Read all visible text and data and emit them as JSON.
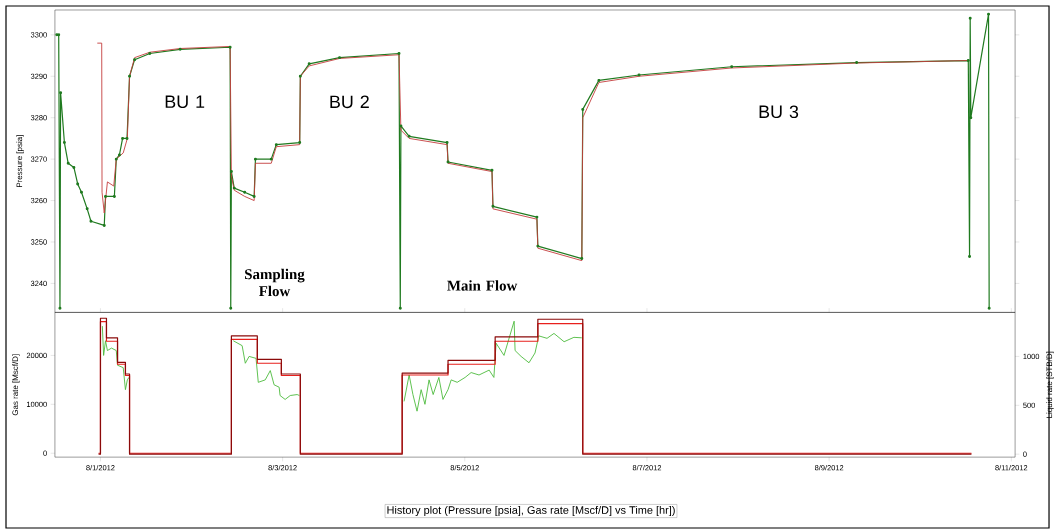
{
  "chart_data": [
    {
      "type": "line",
      "ylabel": "Pressure [psia]",
      "xlim": [
        "2012-07-31T12:00",
        "2012-08-11T01:00"
      ],
      "ylim": [
        3233,
        3306
      ],
      "yticks": [
        3240,
        3250,
        3260,
        3270,
        3280,
        3290,
        3300
      ],
      "tick_labels": "y",
      "series": [
        {
          "color": "#1f7a1f",
          "marker": "circle",
          "x": [
            "2012-07-31T12:30",
            "2012-07-31T13:00",
            "2012-07-31T13:20",
            "2012-07-31T13:30",
            "2012-07-31T14:30",
            "2012-07-31T15:30",
            "2012-07-31T17:00",
            "2012-07-31T18:00",
            "2012-07-31T19:00",
            "2012-07-31T20:30",
            "2012-07-31T21:30",
            "2012-08-01T01:00",
            "2012-08-01T01:20",
            "2012-08-01T03:40",
            "2012-08-01T04:10",
            "2012-08-01T05:00",
            "2012-08-01T05:50",
            "2012-08-01T07:00",
            "2012-08-01T07:40",
            "2012-08-01T09:00",
            "2012-08-01T13:00",
            "2012-08-01T21:00",
            "2012-08-02T10:10",
            "2012-08-02T10:20",
            "2012-08-02T10:30",
            "2012-08-02T11:15",
            "2012-08-02T14:00",
            "2012-08-02T16:30",
            "2012-08-02T16:50",
            "2012-08-02T21:00",
            "2012-08-02T22:20",
            "2012-08-03T04:30",
            "2012-08-03T04:40",
            "2012-08-03T07:00",
            "2012-08-03T15:00",
            "2012-08-04T06:40",
            "2012-08-04T07:00",
            "2012-08-04T07:10",
            "2012-08-04T09:20",
            "2012-08-04T19:20",
            "2012-08-04T19:35",
            "2012-08-05T07:10",
            "2012-08-05T07:25",
            "2012-08-05T19:00",
            "2012-08-05T19:15",
            "2012-08-06T06:50",
            "2012-08-06T07:05",
            "2012-08-06T11:20",
            "2012-08-06T21:55",
            "2012-08-07T22:20",
            "2012-08-09T07:15",
            "2012-08-10T12:40",
            "2012-08-10T13:00",
            "2012-08-10T13:10",
            "2012-08-10T13:20",
            "2012-08-10T18:00",
            "2012-08-10T18:10"
          ],
          "values": [
            3300,
            3300,
            3234,
            3286,
            3274,
            3269,
            3268,
            3264,
            3262,
            3258,
            3255,
            3254,
            3261,
            3261,
            3270,
            3271,
            3275,
            3275,
            3290,
            3294,
            3295.5,
            3296.5,
            3297,
            3234,
            3267,
            3263,
            3262,
            3261,
            3270,
            3270,
            3273.5,
            3274,
            3290,
            3293,
            3294.5,
            3295.5,
            3234,
            3278,
            3275.5,
            3274,
            3269.3,
            3267.3,
            3258.6,
            3256,
            3249,
            3246,
            3282,
            3289,
            3290.3,
            3292.3,
            3293.3,
            3293.8,
            3246.5,
            3304,
            3280,
            3305,
            3234
          ]
        },
        {
          "color": "#c43c3c",
          "x": [
            "2012-07-31T23:10",
            "2012-08-01T00:20",
            "2012-08-01T00:25",
            "2012-08-01T01:00",
            "2012-08-01T01:50",
            "2012-08-01T03:30",
            "2012-08-01T04:10",
            "2012-08-01T06:00",
            "2012-08-01T07:05",
            "2012-08-01T07:40",
            "2012-08-01T09:00",
            "2012-08-01T13:00",
            "2012-08-01T21:00",
            "2012-08-02T10:10",
            "2012-08-02T10:30",
            "2012-08-02T11:15",
            "2012-08-02T14:00",
            "2012-08-02T16:30",
            "2012-08-02T16:50",
            "2012-08-02T21:00",
            "2012-08-02T22:20",
            "2012-08-03T04:30",
            "2012-08-03T04:40",
            "2012-08-03T07:00",
            "2012-08-03T15:00",
            "2012-08-04T06:40",
            "2012-08-04T07:10",
            "2012-08-04T09:20",
            "2012-08-04T19:20",
            "2012-08-04T19:35",
            "2012-08-05T07:10",
            "2012-08-05T07:25",
            "2012-08-05T19:00",
            "2012-08-05T19:15",
            "2012-08-06T06:50",
            "2012-08-06T07:05",
            "2012-08-06T11:20",
            "2012-08-06T21:55",
            "2012-08-07T22:20",
            "2012-08-09T07:15",
            "2012-08-10T12:40"
          ],
          "values": [
            3298,
            3298,
            3262,
            3257,
            3264.5,
            3263.5,
            3270,
            3271.5,
            3275,
            3290,
            3294.5,
            3295.8,
            3296.7,
            3297.2,
            3266,
            3262.5,
            3261,
            3260,
            3269,
            3269,
            3273,
            3273.5,
            3290,
            3292.5,
            3294.3,
            3295.2,
            3277,
            3275,
            3273.5,
            3269,
            3267,
            3258,
            3255.5,
            3248.5,
            3245.5,
            3280,
            3288.5,
            3290,
            3292,
            3293.2,
            3293.8
          ]
        }
      ],
      "annotations": [
        "BU 1",
        "BU 2",
        "BU 3",
        "Sampling Flow",
        "Main Flow"
      ]
    },
    {
      "type": "line",
      "ylabel": "Gas rate [Mscf/D]",
      "y2label": "Liquid rate [STB/D]",
      "xlim": [
        "2012-07-31T12:00",
        "2012-08-11T01:00"
      ],
      "ylim": [
        -800,
        28800
      ],
      "yticks": [
        0,
        10000,
        20000
      ],
      "y2lim": [
        -30,
        1450
      ],
      "y2ticks": [
        0,
        500,
        1000
      ],
      "xticks": [
        {
          "value": "2012-08-01",
          "label": "8/1/2012"
        },
        {
          "value": "2012-08-03",
          "label": "8/3/2012"
        },
        {
          "value": "2012-08-05",
          "label": "8/5/2012"
        },
        {
          "value": "2012-08-07",
          "label": "8/7/2012"
        },
        {
          "value": "2012-08-09",
          "label": "8/9/2012"
        },
        {
          "value": "2012-08-11",
          "label": "8/11/2012"
        }
      ],
      "series": [
        {
          "type": "line",
          "color": "#4cbb3c",
          "x": [
            "2012-08-01T00:30",
            "2012-08-01T00:50",
            "2012-08-01T01:20",
            "2012-08-01T01:50",
            "2012-08-01T02:55",
            "2012-08-01T04:10",
            "2012-08-01T04:30",
            "2012-08-01T06:00",
            "2012-08-01T06:35",
            "2012-08-01T07:05",
            "2012-08-01T07:30",
            "2012-08-02T00:00",
            "2012-08-02T11:00",
            "2012-08-02T13:20",
            "2012-08-02T14:10",
            "2012-08-02T15:10",
            "2012-08-02T17:00",
            "2012-08-02T17:35",
            "2012-08-02T19:25",
            "2012-08-02T20:45",
            "2012-08-02T21:45",
            "2012-08-02T23:05",
            "2012-08-02T23:20",
            "2012-08-03T00:40",
            "2012-08-03T02:00",
            "2012-08-03T03:50",
            "2012-08-03T04:25",
            "2012-08-04T00:00",
            "2012-08-04T08:00",
            "2012-08-04T09:20",
            "2012-08-04T10:20",
            "2012-08-04T11:25",
            "2012-08-04T12:30",
            "2012-08-04T13:30",
            "2012-08-04T14:35",
            "2012-08-04T15:40",
            "2012-08-04T17:10",
            "2012-08-04T18:15",
            "2012-08-04T19:35",
            "2012-08-04T20:25",
            "2012-08-04T22:00",
            "2012-08-05T00:05",
            "2012-08-05T01:40",
            "2012-08-05T03:45",
            "2012-08-05T06:25",
            "2012-08-05T07:40",
            "2012-08-05T08:15",
            "2012-08-05T10:20",
            "2012-08-05T13:00",
            "2012-08-05T13:15",
            "2012-08-05T14:50",
            "2012-08-05T16:55",
            "2012-08-05T18:30",
            "2012-08-05T19:30",
            "2012-08-05T21:40",
            "2012-08-05T23:30",
            "2012-08-06T02:10",
            "2012-08-06T04:45",
            "2012-08-06T06:50"
          ],
          "values": [
            26000,
            20000,
            23000,
            21000,
            21500,
            21000,
            18000,
            17500,
            13000,
            15000,
            15500,
            null,
            23000,
            22000,
            18400,
            19800,
            19400,
            14500,
            15000,
            16900,
            14000,
            13500,
            11800,
            11000,
            11800,
            12000,
            11800,
            null,
            10600,
            16000,
            12000,
            8600,
            13000,
            10000,
            15000,
            12000,
            15500,
            11000,
            13000,
            15000,
            14500,
            15500,
            16500,
            16000,
            17000,
            15500,
            22500,
            20000,
            27000,
            21000,
            19800,
            18500,
            20500,
            24000,
            23500,
            24500,
            22800,
            23700,
            23600
          ]
        },
        {
          "type": "step",
          "color": "#8b0a0a",
          "axis": "y2",
          "x": [
            "2012-07-31T23:30",
            "2012-08-01T00:00",
            "2012-08-01T01:35",
            "2012-08-01T04:30",
            "2012-08-01T06:35",
            "2012-08-01T07:40",
            "2012-08-02T10:30",
            "2012-08-02T17:20",
            "2012-08-02T23:40",
            "2012-08-03T04:40",
            "2012-08-04T07:30",
            "2012-08-04T19:35",
            "2012-08-05T08:00",
            "2012-08-05T19:15",
            "2012-08-06T07:05",
            "2012-08-10T13:30"
          ],
          "values": [
            0,
            1390,
            1190,
            940,
            820,
            0,
            1210,
            970,
            820,
            0,
            830,
            960,
            1200,
            1380,
            0,
            0
          ]
        },
        {
          "type": "step",
          "color": "#e8201c",
          "x": [
            "2012-07-31T23:30",
            "2012-08-01T00:00",
            "2012-08-01T01:35",
            "2012-08-01T04:30",
            "2012-08-01T06:35",
            "2012-08-01T07:40",
            "2012-08-02T10:30",
            "2012-08-02T17:20",
            "2012-08-02T23:40",
            "2012-08-03T04:40",
            "2012-08-04T07:30",
            "2012-08-04T19:35",
            "2012-08-05T08:00",
            "2012-08-05T19:15",
            "2012-08-06T07:05",
            "2012-08-10T13:30"
          ],
          "values": [
            0,
            26900,
            22900,
            18200,
            15900,
            0,
            23300,
            18400,
            15900,
            0,
            16000,
            18200,
            22900,
            26500,
            0,
            0
          ]
        }
      ],
      "annotations": [
        "History plot (Pressure [psia], Gas rate [Mscf/D] vs Time [hr])"
      ]
    }
  ]
}
